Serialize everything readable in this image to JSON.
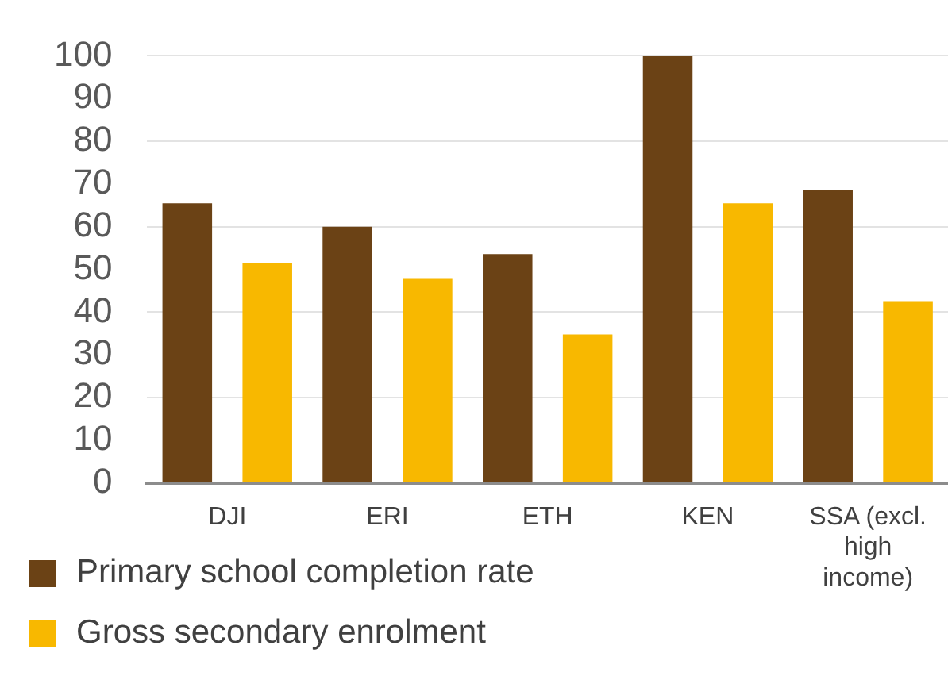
{
  "chart_data": {
    "type": "bar",
    "categories": [
      "DJI",
      "ERI",
      "ETH",
      "KEN",
      "SSA (excl. high income)"
    ],
    "series": [
      {
        "name": "Primary school completion rate",
        "color": "#6b4215",
        "values": [
          65.5,
          60,
          53.6,
          100,
          68.5
        ]
      },
      {
        "name": "Gross secondary enrolment",
        "color": "#f8b800",
        "values": [
          51.5,
          47.8,
          34.8,
          65.5,
          42.6
        ]
      }
    ],
    "ylim": [
      0,
      100
    ],
    "yticks": [
      0,
      10,
      20,
      30,
      40,
      50,
      60,
      70,
      80,
      90,
      100
    ],
    "grid": "y",
    "legend": "bottom left"
  }
}
